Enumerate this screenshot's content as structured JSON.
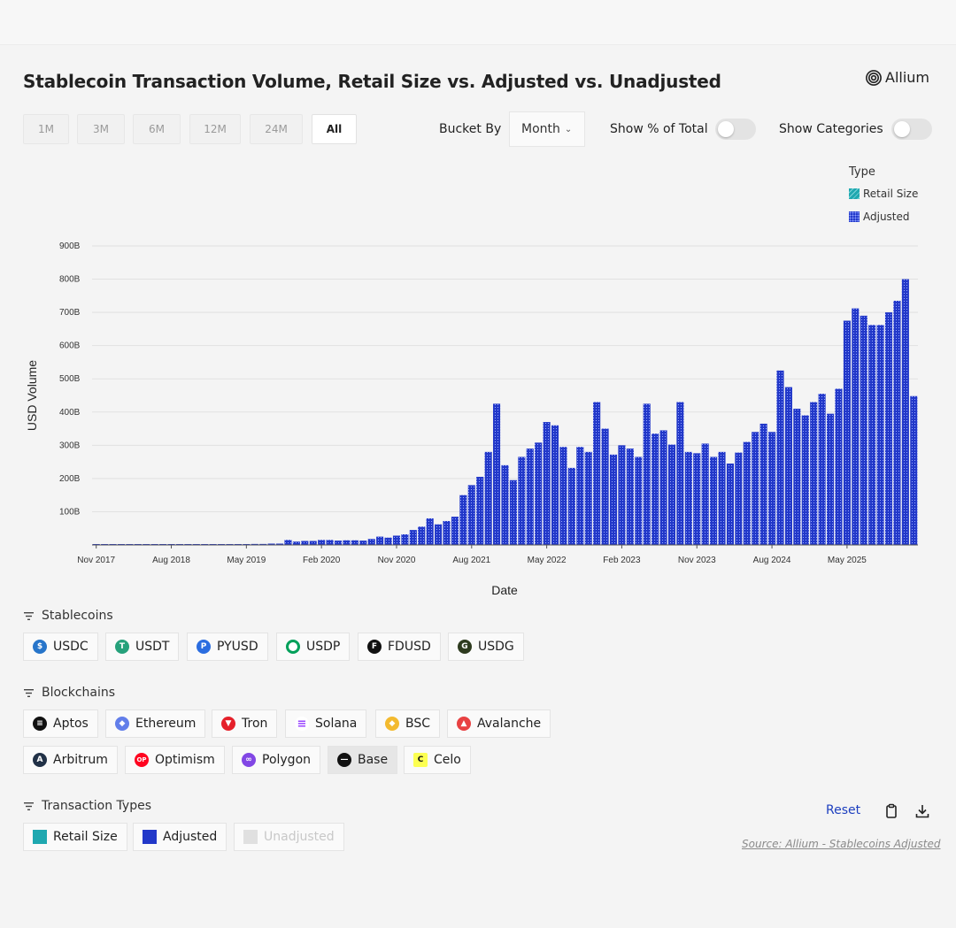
{
  "header": {
    "title": "Stablecoin Transaction Volume, Retail Size vs. Adjusted vs. Unadjusted",
    "brand": "Allium"
  },
  "controls": {
    "ranges": [
      "1M",
      "3M",
      "6M",
      "12M",
      "24M",
      "All"
    ],
    "active_range": "All",
    "bucket_label": "Bucket By",
    "bucket_value": "Month",
    "show_pct_label": "Show % of Total",
    "show_pct_on": false,
    "show_categories_label": "Show Categories",
    "show_categories_on": false
  },
  "legend": {
    "title": "Type",
    "items": [
      {
        "label": "Retail Size",
        "color": "#1fa8b0"
      },
      {
        "label": "Adjusted",
        "color": "#2238c9"
      }
    ]
  },
  "chart_data": {
    "type": "bar",
    "xlabel": "Date",
    "ylabel": "USD Volume",
    "ylim": [
      0,
      900
    ],
    "y_unit": "B",
    "y_ticks": [
      "100B",
      "200B",
      "300B",
      "400B",
      "500B",
      "600B",
      "700B",
      "800B",
      "900B"
    ],
    "x_ticks": [
      "Nov 2017",
      "Aug 2018",
      "May 2019",
      "Feb 2020",
      "Nov 2020",
      "Aug 2021",
      "May 2022",
      "Feb 2023",
      "Nov 2023",
      "Aug 2024",
      "May 2025"
    ],
    "grid": true,
    "legend_position": "top-right",
    "x_start": "Nov 2017",
    "x_end": "Jun 2025",
    "series": [
      {
        "name": "Adjusted",
        "color": "#2238c9",
        "values": [
          1,
          1,
          1,
          1,
          1,
          1,
          1,
          1,
          1,
          1,
          1,
          1,
          2,
          2,
          2,
          2,
          2,
          2,
          2,
          3,
          3,
          4,
          4,
          15,
          10,
          12,
          12,
          15,
          15,
          13,
          14,
          14,
          13,
          18,
          25,
          22,
          28,
          32,
          45,
          55,
          80,
          62,
          72,
          85,
          150,
          180,
          205,
          280,
          425,
          240,
          195,
          265,
          290,
          308,
          370,
          360,
          295,
          232,
          295,
          280,
          430,
          350,
          272,
          300,
          290,
          265,
          425,
          335,
          345,
          302,
          430,
          280,
          276,
          305,
          265,
          280,
          245,
          278,
          310,
          340,
          365,
          340,
          525,
          475,
          410,
          390,
          430,
          455,
          395,
          470,
          675,
          712,
          690,
          662,
          662,
          700,
          735,
          800,
          448
        ]
      }
    ]
  },
  "sections": {
    "stablecoins": {
      "title": "Stablecoins",
      "items": [
        {
          "label": "USDC",
          "icon": "usdc-icon",
          "color": "#2775ca"
        },
        {
          "label": "USDT",
          "icon": "usdt-icon",
          "color": "#26a17b"
        },
        {
          "label": "PYUSD",
          "icon": "pyusd-icon",
          "color": "#2b6de0"
        },
        {
          "label": "USDP",
          "icon": "usdp-icon",
          "color": "#00a05a"
        },
        {
          "label": "FDUSD",
          "icon": "fdusd-icon",
          "color": "#111111"
        },
        {
          "label": "USDG",
          "icon": "usdg-icon",
          "color": "#2e3b1f"
        }
      ]
    },
    "blockchains": {
      "title": "Blockchains",
      "row1": [
        {
          "label": "Aptos",
          "icon": "aptos-icon",
          "color": "#111111"
        },
        {
          "label": "Ethereum",
          "icon": "ethereum-icon",
          "color": "#627eea"
        },
        {
          "label": "Tron",
          "icon": "tron-icon",
          "color": "#e5202a"
        },
        {
          "label": "Solana",
          "icon": "solana-icon",
          "color": "#9945ff"
        },
        {
          "label": "BSC",
          "icon": "bsc-icon",
          "color": "#f3ba2f"
        },
        {
          "label": "Avalanche",
          "icon": "avalanche-icon",
          "color": "#e84142"
        }
      ],
      "row2": [
        {
          "label": "Arbitrum",
          "icon": "arbitrum-icon",
          "color": "#213147"
        },
        {
          "label": "Optimism",
          "icon": "optimism-icon",
          "color": "#ff0420"
        },
        {
          "label": "Polygon",
          "icon": "polygon-icon",
          "color": "#8247e5"
        },
        {
          "label": "Base",
          "icon": "base-icon",
          "color": "#111111"
        },
        {
          "label": "Celo",
          "icon": "celo-icon",
          "color": "#fcff52"
        }
      ]
    },
    "transaction_types": {
      "title": "Transaction Types",
      "items": [
        {
          "label": "Retail Size",
          "color": "#1fa8b0"
        },
        {
          "label": "Adjusted",
          "color": "#2238c9"
        },
        {
          "label": "Unadjusted",
          "color": "#e0e0e0"
        }
      ]
    }
  },
  "footer": {
    "reset_label": "Reset",
    "source": "Source: Allium - Stablecoins Adjusted"
  }
}
